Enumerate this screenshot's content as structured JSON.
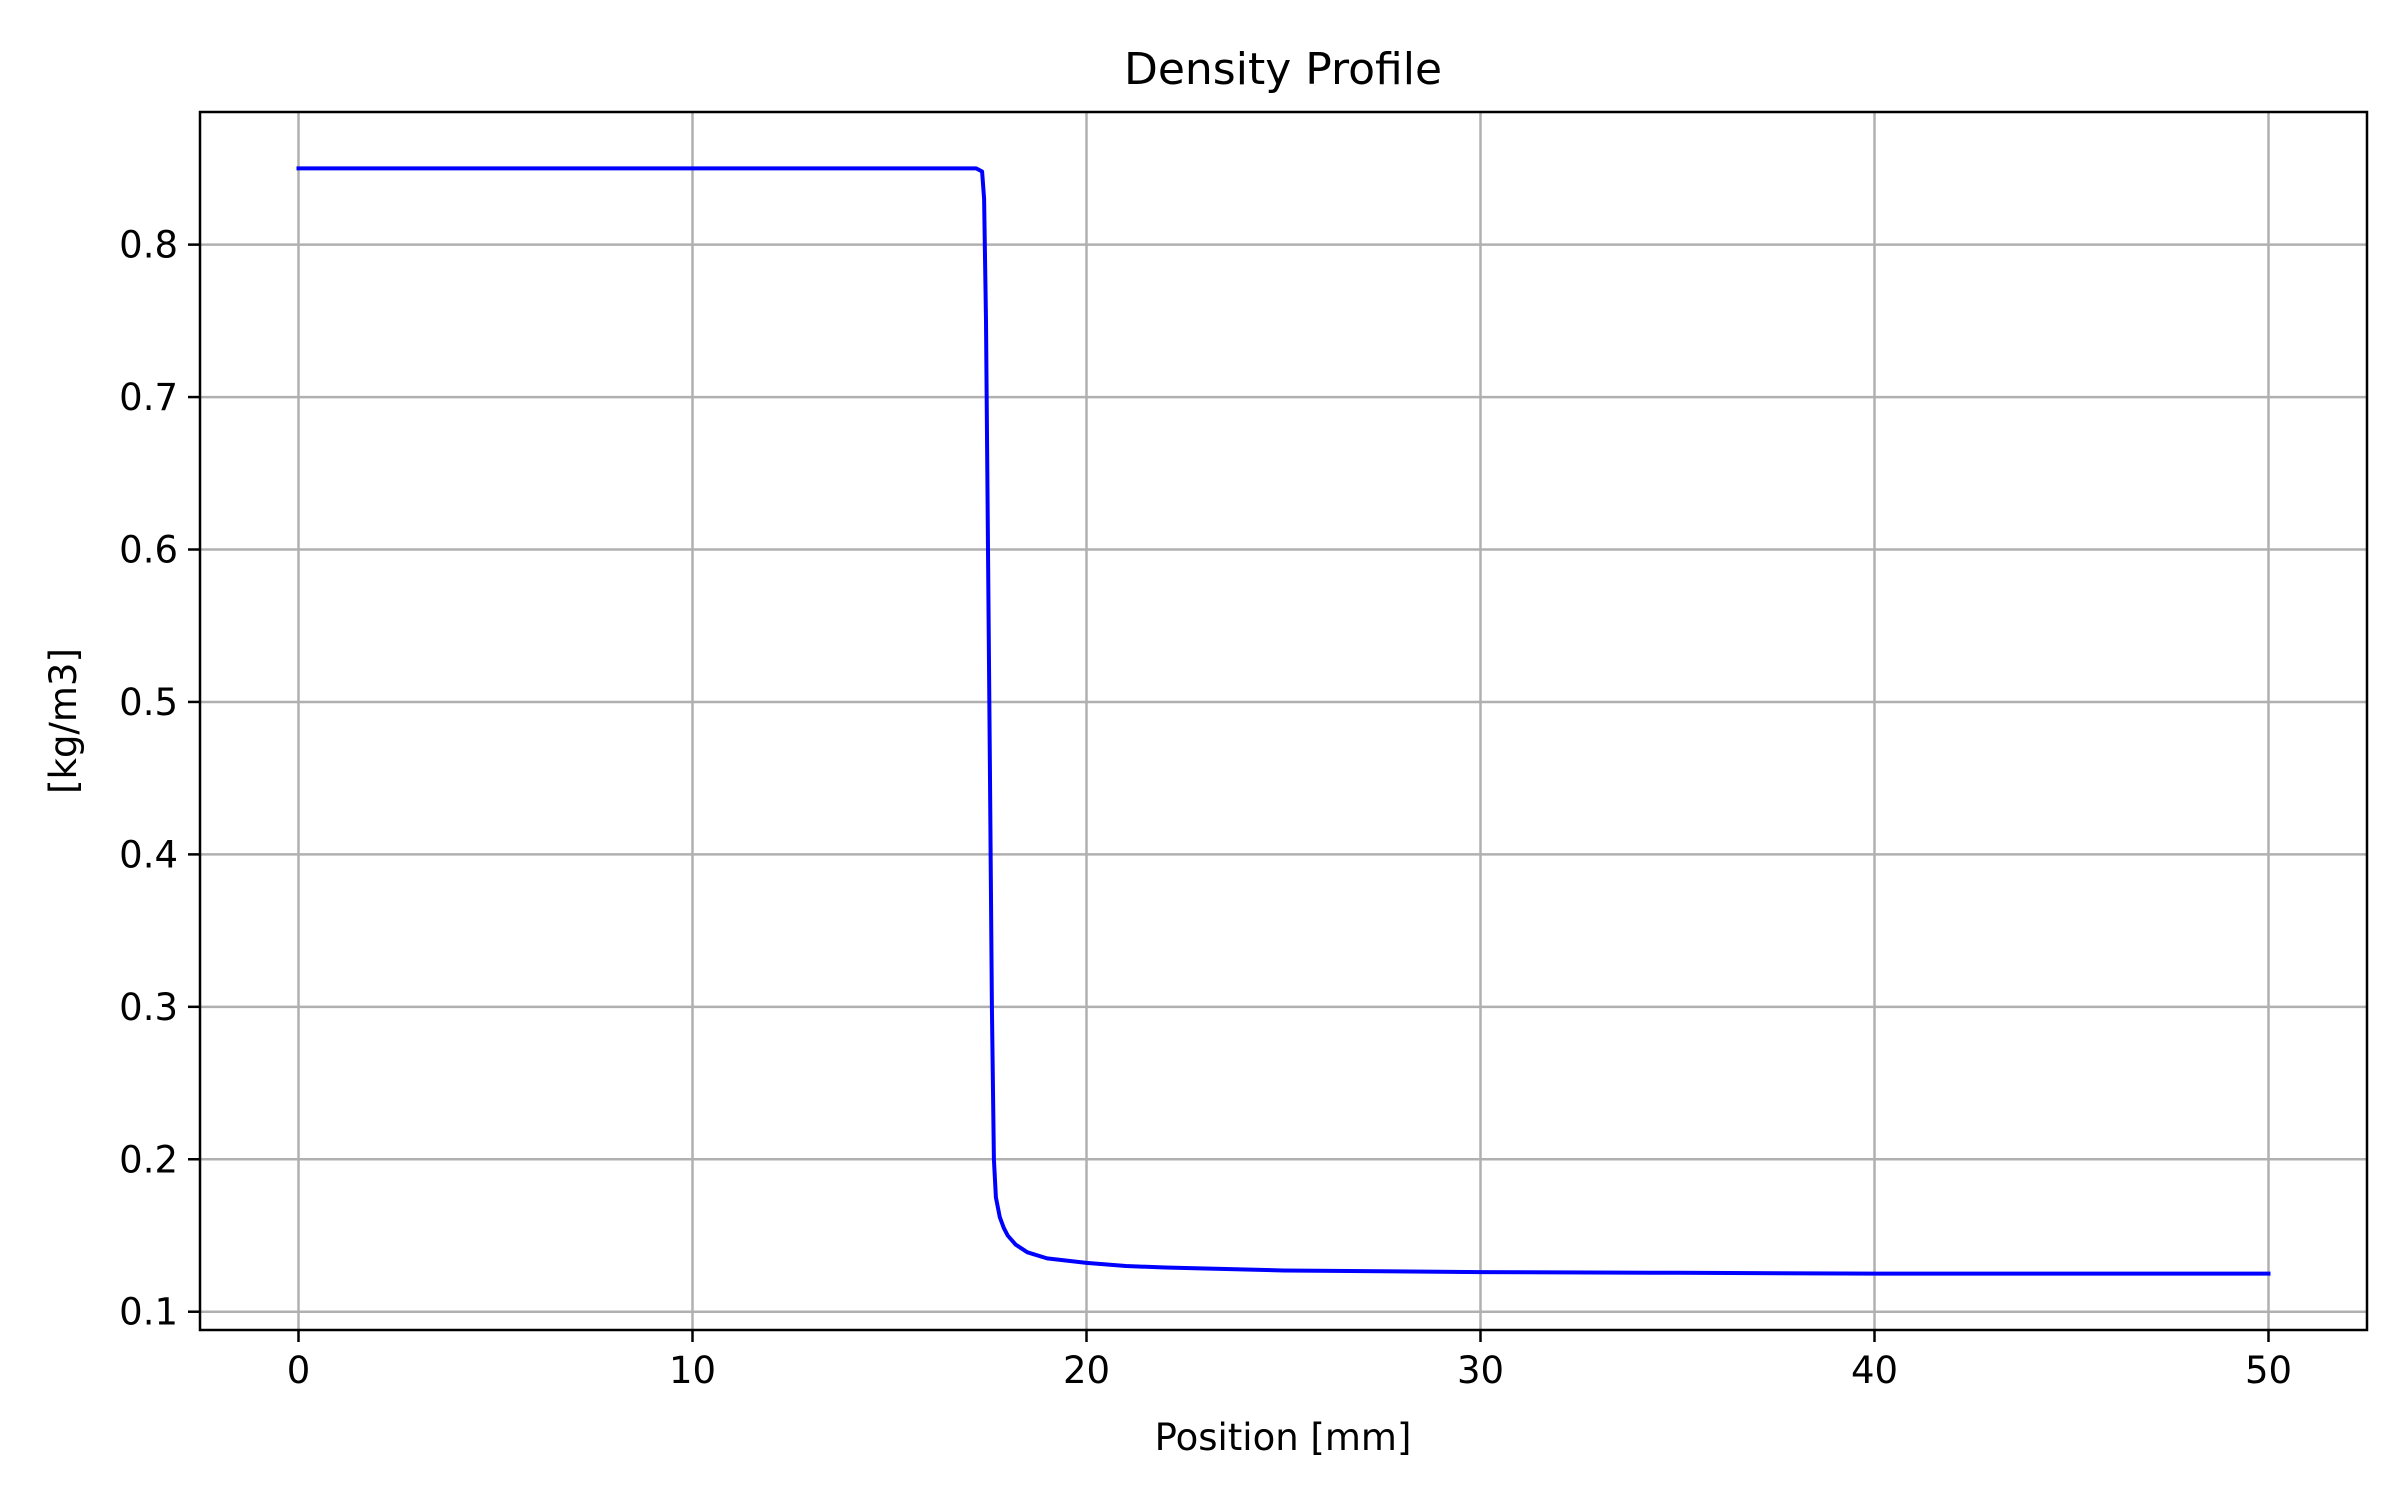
{
  "chart_data": {
    "type": "line",
    "title": "Density Profile",
    "xlabel": "Position [mm]",
    "ylabel": "[kg/m3]",
    "xlim": [
      -2.5,
      52.5
    ],
    "ylim": [
      0.088,
      0.887
    ],
    "x_ticks": [
      0,
      10,
      20,
      30,
      40,
      50
    ],
    "y_ticks": [
      0.1,
      0.2,
      0.3,
      0.4,
      0.5,
      0.6,
      0.7,
      0.8
    ],
    "x_tick_labels": [
      "0",
      "10",
      "20",
      "30",
      "40",
      "50"
    ],
    "y_tick_labels": [
      "0.1",
      "0.2",
      "0.3",
      "0.4",
      "0.5",
      "0.6",
      "0.7",
      "0.8"
    ],
    "grid": true,
    "legend": "none",
    "series": [
      {
        "color": "#0000ff",
        "x": [
          0,
          5,
          10,
          15,
          17.2,
          17.35,
          17.4,
          17.45,
          17.5,
          17.55,
          17.6,
          17.65,
          17.7,
          17.8,
          17.9,
          18.0,
          18.2,
          18.5,
          19,
          20,
          21,
          22,
          25,
          30,
          35,
          40,
          45,
          50
        ],
        "y": [
          0.85,
          0.85,
          0.85,
          0.85,
          0.85,
          0.848,
          0.83,
          0.75,
          0.6,
          0.45,
          0.3,
          0.2,
          0.175,
          0.162,
          0.155,
          0.15,
          0.144,
          0.139,
          0.135,
          0.132,
          0.13,
          0.129,
          0.127,
          0.126,
          0.1255,
          0.125,
          0.125,
          0.125
        ]
      }
    ]
  }
}
